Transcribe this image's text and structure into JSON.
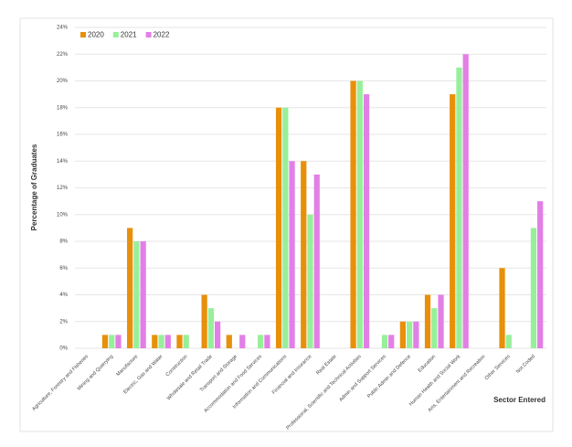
{
  "chart_data": {
    "type": "bar",
    "y_label": "Percentage of Graduates",
    "x_label": "Sector Entered",
    "categories": [
      "Agriculture, Forestry and Fisheries",
      "Mining and Quarrying",
      "Manufacture",
      "Electric, Gas and Water",
      "Construction",
      "Wholesale and Retail Trade",
      "Transport and Storage",
      "Accommodation and Food Services",
      "Information and Communications",
      "Financial and Insurance",
      "Real Estate",
      "Professional, Scientific and Technical Activities",
      "Admin and Support Services",
      "Public Admin and Defence",
      "Education",
      "Human Health and Social Work",
      "Arts, Entertainment and Recreation",
      "Other Services",
      "Not Coded"
    ],
    "series": [
      {
        "name": "2020",
        "color": "#e8900a",
        "values": [
          0,
          1,
          9,
          1,
          1,
          4,
          1,
          0,
          18,
          14,
          0,
          20,
          0,
          2,
          4,
          19,
          0,
          6,
          0
        ]
      },
      {
        "name": "2021",
        "color": "#98ef9a",
        "values": [
          0,
          1,
          8,
          1,
          1,
          3,
          0,
          1,
          18,
          10,
          0,
          20,
          1,
          2,
          3,
          21,
          0,
          1,
          9
        ]
      },
      {
        "name": "2022",
        "color": "#e27fe6",
        "values": [
          0,
          1,
          8,
          1,
          0,
          2,
          1,
          1,
          14,
          13,
          0,
          19,
          1,
          2,
          4,
          22,
          0,
          0,
          11
        ]
      }
    ],
    "ylim": [
      0,
      24
    ],
    "yticks": [
      {
        "value": 0,
        "label": "0%"
      },
      {
        "value": 2,
        "label": "2%"
      },
      {
        "value": 4,
        "label": "4%"
      },
      {
        "value": 6,
        "label": "6%"
      },
      {
        "value": 8,
        "label": "8%"
      },
      {
        "value": 10,
        "label": "10%"
      },
      {
        "value": 12,
        "label": "12%"
      },
      {
        "value": 14,
        "label": "14%"
      },
      {
        "value": 16,
        "label": "16%"
      },
      {
        "value": 18,
        "label": "18%"
      },
      {
        "value": 20,
        "label": "20%"
      },
      {
        "value": 22,
        "label": "22%"
      },
      {
        "value": 24,
        "label": "24%"
      }
    ],
    "grid": true,
    "legend": "top-left"
  }
}
